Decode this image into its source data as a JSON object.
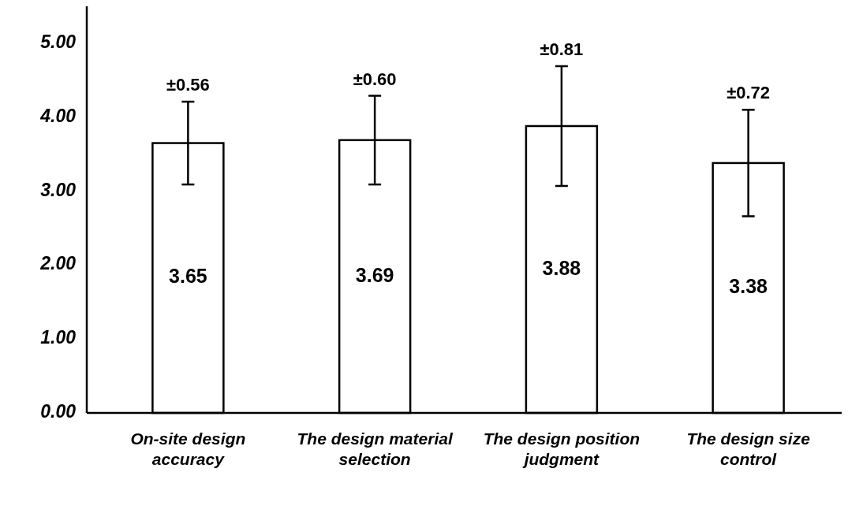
{
  "chart_data": {
    "type": "bar",
    "categories": [
      "On-site design accuracy",
      "The design material selection",
      "The design position judgment",
      "The design size control"
    ],
    "values": [
      3.65,
      3.69,
      3.88,
      3.38
    ],
    "errors": [
      0.56,
      0.6,
      0.81,
      0.72
    ],
    "color": "#ffffff",
    "data_labels": true,
    "ylim": [
      0,
      5.5
    ],
    "yticks": [
      {
        "value": 0,
        "label": "0.00"
      },
      {
        "value": 1,
        "label": "1.00"
      },
      {
        "value": 2,
        "label": "2.00"
      },
      {
        "value": 3,
        "label": "3.00"
      },
      {
        "value": 4,
        "label": "4.00"
      },
      {
        "value": 5,
        "label": "5.00"
      }
    ],
    "annotations": [
      {
        "text": "±0.56",
        "x": "On-site design accuracy",
        "y": 4.21
      },
      {
        "text": "±0.60",
        "x": "The design material selection",
        "y": 4.29
      },
      {
        "text": "±0.81",
        "x": "The design position judgment",
        "y": 4.69
      },
      {
        "text": "±0.72",
        "x": "The design size control",
        "y": 4.1
      }
    ],
    "grid": false
  }
}
